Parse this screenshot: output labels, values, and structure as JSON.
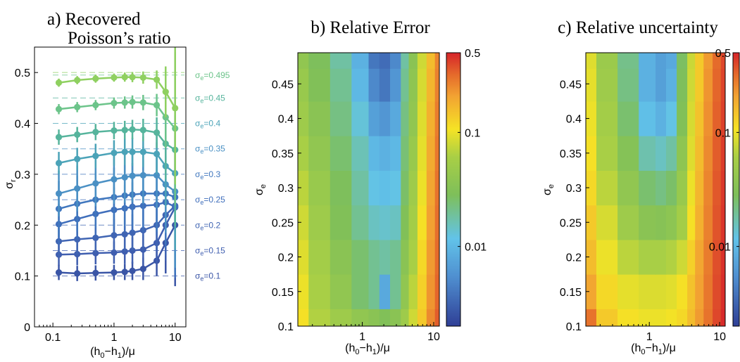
{
  "chart_data": [
    {
      "type": "line",
      "title_line1": "a) Recovered",
      "title_line2": "Poisson’s ratio",
      "xlabel_main": "(h",
      "xlabel_sub0": "0",
      "xlabel_mid": "−h",
      "xlabel_sub1": "1",
      "xlabel_end": ")/μ",
      "ylabel_main": "σ",
      "ylabel_sub": "r",
      "x_scale": "log",
      "xlim": [
        0.05,
        15
      ],
      "ylim": [
        0,
        0.55
      ],
      "xticks": [
        0.1,
        1,
        10
      ],
      "xtick_labels": [
        "0.1",
        "1",
        "10"
      ],
      "yticks": [
        0,
        0.1,
        0.2,
        0.3,
        0.4,
        0.5
      ],
      "ytick_labels": [
        "0",
        "0.1",
        "0.2",
        "0.3",
        "0.4",
        "0.5"
      ],
      "x": [
        0.125,
        0.25,
        0.5,
        1,
        1.5,
        2,
        3,
        5,
        7,
        10
      ],
      "series": [
        {
          "label_main": "σ",
          "label_sub": "e",
          "label_val": "=0.1",
          "true_value": 0.1,
          "color": "#3a55a6",
          "values": [
            0.107,
            0.105,
            0.106,
            0.107,
            0.108,
            0.11,
            0.114,
            0.13,
            0.165,
            0.2
          ],
          "errors": [
            0.015,
            0.015,
            0.015,
            0.015,
            0.016,
            0.018,
            0.022,
            0.03,
            0.06,
            0.12
          ]
        },
        {
          "label_main": "σ",
          "label_sub": "e",
          "label_val": "=0.15",
          "true_value": 0.15,
          "color": "#3f5eaf",
          "values": [
            0.142,
            0.143,
            0.145,
            0.146,
            0.148,
            0.15,
            0.152,
            0.165,
            0.2,
            0.235
          ],
          "errors": [
            0.022,
            0.022,
            0.022,
            0.022,
            0.024,
            0.026,
            0.03,
            0.04,
            0.07,
            0.12
          ]
        },
        {
          "label_main": "σ",
          "label_sub": "e",
          "label_val": "=0.2",
          "true_value": 0.2,
          "color": "#4065b3",
          "values": [
            0.168,
            0.172,
            0.175,
            0.18,
            0.182,
            0.185,
            0.19,
            0.2,
            0.22,
            0.238
          ],
          "errors": [
            0.03,
            0.03,
            0.03,
            0.032,
            0.034,
            0.036,
            0.04,
            0.05,
            0.08,
            0.13
          ]
        },
        {
          "label_main": "σ",
          "label_sub": "e",
          "label_val": "=0.25",
          "true_value": 0.25,
          "color": "#3f6ebb",
          "values": [
            0.202,
            0.212,
            0.222,
            0.23,
            0.233,
            0.236,
            0.238,
            0.24,
            0.245,
            0.236
          ],
          "errors": [
            0.04,
            0.04,
            0.042,
            0.044,
            0.046,
            0.048,
            0.052,
            0.06,
            0.09,
            0.14
          ]
        },
        {
          "label_main": "σ",
          "label_sub": "e",
          "label_val": "=0.3",
          "true_value": 0.3,
          "color": "#4077be",
          "values": [
            0.232,
            0.242,
            0.25,
            0.255,
            0.258,
            0.26,
            0.262,
            0.262,
            0.262,
            0.255
          ],
          "errors": [
            0.055,
            0.055,
            0.055,
            0.058,
            0.06,
            0.062,
            0.066,
            0.075,
            0.1,
            0.15
          ]
        },
        {
          "label_main": "σ",
          "label_sub": "e",
          "label_val": "=0.35",
          "true_value": 0.35,
          "color": "#4a90c4",
          "values": [
            0.262,
            0.272,
            0.282,
            0.29,
            0.294,
            0.297,
            0.298,
            0.298,
            0.28,
            0.266
          ],
          "errors": [
            0.045,
            0.045,
            0.045,
            0.048,
            0.05,
            0.052,
            0.056,
            0.065,
            0.095,
            0.15
          ]
        },
        {
          "label_main": "σ",
          "label_sub": "e",
          "label_val": "=0.4",
          "true_value": 0.4,
          "color": "#4ba3b8",
          "values": [
            0.322,
            0.33,
            0.336,
            0.342,
            0.344,
            0.344,
            0.344,
            0.34,
            0.316,
            0.302
          ],
          "errors": [
            0.022,
            0.022,
            0.024,
            0.025,
            0.026,
            0.028,
            0.03,
            0.04,
            0.08,
            0.15
          ]
        },
        {
          "label_main": "σ",
          "label_sub": "e",
          "label_val": "=0.45",
          "true_value": 0.45,
          "color": "#56b49c",
          "values": [
            0.373,
            0.378,
            0.383,
            0.386,
            0.387,
            0.388,
            0.387,
            0.382,
            0.36,
            0.348
          ],
          "errors": [
            0.015,
            0.015,
            0.016,
            0.017,
            0.018,
            0.019,
            0.022,
            0.03,
            0.07,
            0.15
          ]
        },
        {
          "label_main": "σ",
          "label_sub": "e",
          "label_val": "=0.495",
          "true_value": 0.495,
          "color": "#6cc48a",
          "values": [
            0.428,
            0.432,
            0.436,
            0.44,
            0.441,
            0.442,
            0.441,
            0.436,
            0.412,
            0.39
          ],
          "errors": [
            0.01,
            0.01,
            0.01,
            0.011,
            0.012,
            0.013,
            0.015,
            0.022,
            0.06,
            0.15
          ]
        },
        {
          "label_main": "",
          "label_sub": "",
          "label_val": "",
          "true_value": 0.5,
          "color": "#8fd060",
          "values": [
            0.48,
            0.485,
            0.488,
            0.49,
            0.491,
            0.491,
            0.49,
            0.486,
            0.462,
            0.43
          ],
          "errors": [
            0.008,
            0.008,
            0.008,
            0.008,
            0.009,
            0.01,
            0.012,
            0.018,
            0.05,
            0.15
          ]
        }
      ]
    },
    {
      "type": "heatmap",
      "title": "b) Relative Error",
      "xlabel_main": "(h",
      "xlabel_sub0": "0",
      "xlabel_mid": "−h",
      "xlabel_sub1": "1",
      "xlabel_end": ")/μ",
      "ylabel_main": "σ",
      "ylabel_sub": "e",
      "x_scale": "log",
      "xlim": [
        0.125,
        12
      ],
      "ylim": [
        0.1,
        0.495
      ],
      "xticks": [
        1,
        10
      ],
      "xtick_labels": [
        "1",
        "10"
      ],
      "yticks": [
        0.1,
        0.15,
        0.2,
        0.25,
        0.3,
        0.35,
        0.4,
        0.45
      ],
      "ytick_labels": [
        "0.1",
        "0.15",
        "0.2",
        "0.25",
        "0.3",
        "0.35",
        "0.4",
        "0.45"
      ],
      "colorbar": {
        "scale": "log",
        "range": [
          0.002,
          0.5
        ],
        "ticks": [
          0.01,
          0.1,
          0.5
        ],
        "tick_labels": [
          "0.01",
          "0.1",
          "0.5"
        ]
      },
      "x_grid": [
        0.125,
        0.25,
        0.5,
        1,
        1.5,
        2,
        3,
        4,
        5,
        7,
        9,
        12
      ],
      "y_grid": [
        0.1,
        0.15,
        0.2,
        0.25,
        0.3,
        0.35,
        0.4,
        0.45,
        0.495
      ],
      "z": [
        [
          0.11,
          0.065,
          0.05,
          0.04,
          0.035,
          0.03,
          0.035,
          0.05,
          0.08,
          0.14,
          0.25,
          0.35
        ],
        [
          0.1,
          0.06,
          0.04,
          0.025,
          0.02,
          0.008,
          0.02,
          0.04,
          0.07,
          0.13,
          0.23,
          0.33
        ],
        [
          0.09,
          0.055,
          0.035,
          0.025,
          0.02,
          0.018,
          0.02,
          0.035,
          0.06,
          0.12,
          0.22,
          0.32
        ],
        [
          0.08,
          0.05,
          0.03,
          0.02,
          0.015,
          0.014,
          0.015,
          0.03,
          0.055,
          0.11,
          0.21,
          0.31
        ],
        [
          0.07,
          0.045,
          0.028,
          0.018,
          0.012,
          0.011,
          0.012,
          0.026,
          0.05,
          0.1,
          0.2,
          0.3
        ],
        [
          0.06,
          0.04,
          0.025,
          0.016,
          0.01,
          0.009,
          0.01,
          0.024,
          0.045,
          0.095,
          0.19,
          0.29
        ],
        [
          0.05,
          0.035,
          0.022,
          0.013,
          0.007,
          0.006,
          0.008,
          0.022,
          0.04,
          0.09,
          0.18,
          0.28
        ],
        [
          0.045,
          0.03,
          0.02,
          0.01,
          0.005,
          0.004,
          0.006,
          0.02,
          0.038,
          0.085,
          0.17,
          0.27
        ],
        [
          0.04,
          0.028,
          0.018,
          0.009,
          0.004,
          0.0035,
          0.005,
          0.018,
          0.035,
          0.08,
          0.16,
          0.26
        ]
      ]
    },
    {
      "type": "heatmap",
      "title": "c) Relative uncertainty",
      "xlabel_main": "(h",
      "xlabel_sub0": "0",
      "xlabel_mid": "−h",
      "xlabel_sub1": "1",
      "xlabel_end": ")/μ",
      "ylabel_main": "σ",
      "ylabel_sub": "e",
      "x_scale": "log",
      "xlim": [
        0.125,
        12
      ],
      "ylim": [
        0.1,
        0.495
      ],
      "xticks": [
        1,
        10
      ],
      "xtick_labels": [
        "1",
        "10"
      ],
      "yticks": [
        0.1,
        0.15,
        0.2,
        0.25,
        0.3,
        0.35,
        0.4,
        0.45
      ],
      "ytick_labels": [
        "0.1",
        "0.15",
        "0.2",
        "0.25",
        "0.3",
        "0.35",
        "0.4",
        "0.45"
      ],
      "colorbar": {
        "scale": "log",
        "range": [
          0.002,
          0.5
        ],
        "ticks": [
          0.01,
          0.1,
          0.5
        ],
        "tick_labels": [
          "0.01",
          "0.1",
          "0.5"
        ]
      },
      "x_grid": [
        0.125,
        0.25,
        0.5,
        1,
        1.5,
        2,
        3,
        4,
        5,
        7,
        9,
        12
      ],
      "y_grid": [
        0.1,
        0.15,
        0.2,
        0.25,
        0.3,
        0.35,
        0.4,
        0.45,
        0.495
      ],
      "z": [
        [
          0.3,
          0.14,
          0.11,
          0.1,
          0.1,
          0.105,
          0.12,
          0.16,
          0.22,
          0.3,
          0.4,
          0.48
        ],
        [
          0.2,
          0.12,
          0.095,
          0.088,
          0.088,
          0.092,
          0.11,
          0.15,
          0.21,
          0.29,
          0.39,
          0.47
        ],
        [
          0.16,
          0.1,
          0.07,
          0.06,
          0.06,
          0.065,
          0.08,
          0.13,
          0.2,
          0.28,
          0.38,
          0.46
        ],
        [
          0.14,
          0.085,
          0.05,
          0.035,
          0.033,
          0.037,
          0.055,
          0.11,
          0.18,
          0.27,
          0.37,
          0.45
        ],
        [
          0.12,
          0.07,
          0.04,
          0.025,
          0.022,
          0.026,
          0.045,
          0.1,
          0.17,
          0.26,
          0.36,
          0.44
        ],
        [
          0.11,
          0.06,
          0.032,
          0.017,
          0.015,
          0.018,
          0.038,
          0.09,
          0.16,
          0.25,
          0.35,
          0.43
        ],
        [
          0.1,
          0.055,
          0.025,
          0.011,
          0.009,
          0.012,
          0.03,
          0.085,
          0.15,
          0.24,
          0.34,
          0.42
        ],
        [
          0.095,
          0.05,
          0.022,
          0.009,
          0.007,
          0.009,
          0.028,
          0.08,
          0.14,
          0.23,
          0.33,
          0.41
        ],
        [
          0.09,
          0.048,
          0.021,
          0.009,
          0.007,
          0.008,
          0.027,
          0.078,
          0.14,
          0.22,
          0.32,
          0.4
        ]
      ]
    }
  ]
}
